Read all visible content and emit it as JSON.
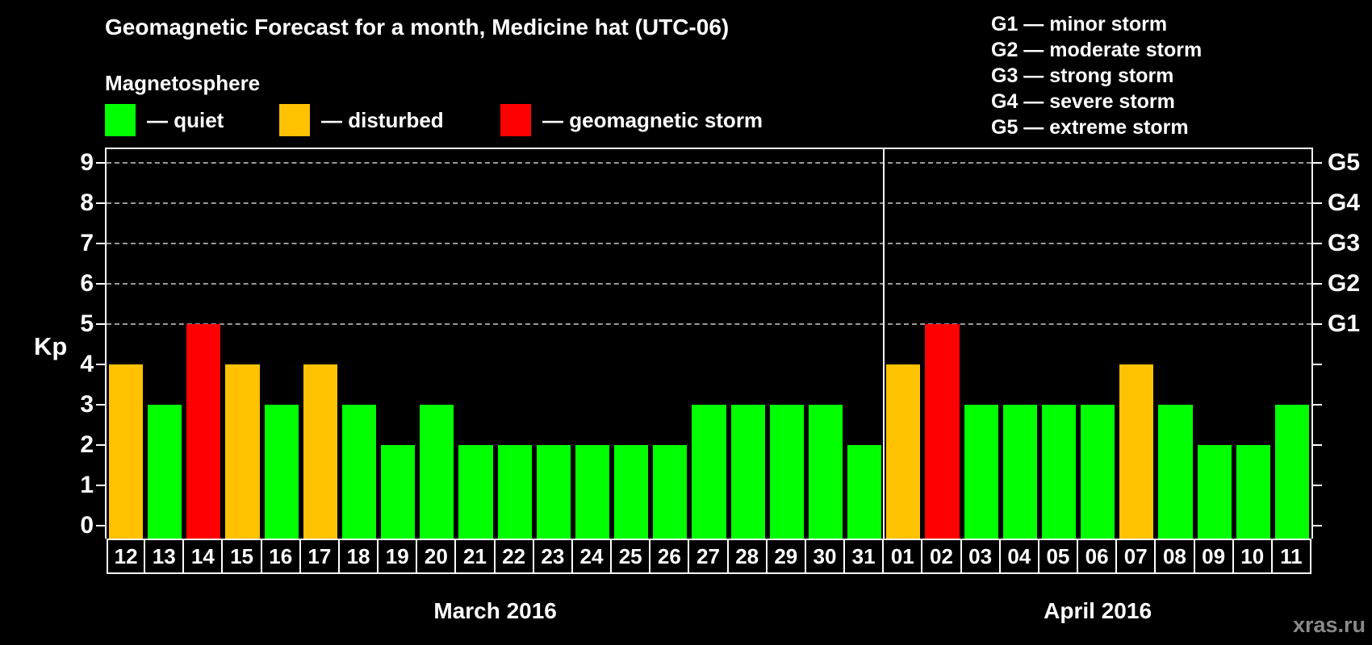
{
  "header": {
    "title": "Geomagnetic Forecast for a month, Medicine hat (UTC-06)"
  },
  "legend": {
    "label": "Magnetosphere",
    "items": [
      {
        "key": "quiet",
        "label": "— quiet"
      },
      {
        "key": "disturbed",
        "label": "— disturbed"
      },
      {
        "key": "storm",
        "label": "— geomagnetic storm"
      }
    ]
  },
  "colors": {
    "quiet": "#00FF00",
    "disturbed": "#FFC200",
    "storm": "#FF0000",
    "gridline": "#9A9A9A",
    "axis": "#FFFFFF",
    "background": "#000000",
    "watermark": "#8A8A8A"
  },
  "g_legend": [
    "G1 — minor storm",
    "G2 — moderate storm",
    "G3 — strong storm",
    "G4 — severe storm",
    "G5 — extreme storm"
  ],
  "watermark": "xras.ru",
  "chart_data": {
    "type": "bar",
    "title": "Geomagnetic Forecast for a month, Medicine hat (UTC-06)",
    "ylabel": "Kp",
    "ylim": [
      0,
      9.4
    ],
    "y_ticks": [
      0,
      1,
      2,
      3,
      4,
      5,
      6,
      7,
      8,
      9
    ],
    "gridlines_at": [
      5,
      6,
      7,
      8,
      9
    ],
    "grid": "dashed horizontal at Kp 5–9 only",
    "right_axis_labels": [
      {
        "value": 5,
        "label": "G1"
      },
      {
        "value": 6,
        "label": "G2"
      },
      {
        "value": 7,
        "label": "G3"
      },
      {
        "value": 8,
        "label": "G4"
      },
      {
        "value": 9,
        "label": "G5"
      }
    ],
    "months": [
      {
        "label": "March 2016",
        "days": [
          {
            "day": "12",
            "kp": 4,
            "status": "disturbed"
          },
          {
            "day": "13",
            "kp": 3,
            "status": "quiet"
          },
          {
            "day": "14",
            "kp": 5,
            "status": "storm"
          },
          {
            "day": "15",
            "kp": 4,
            "status": "disturbed"
          },
          {
            "day": "16",
            "kp": 3,
            "status": "quiet"
          },
          {
            "day": "17",
            "kp": 4,
            "status": "disturbed"
          },
          {
            "day": "18",
            "kp": 3,
            "status": "quiet"
          },
          {
            "day": "19",
            "kp": 2,
            "status": "quiet"
          },
          {
            "day": "20",
            "kp": 3,
            "status": "quiet"
          },
          {
            "day": "21",
            "kp": 2,
            "status": "quiet"
          },
          {
            "day": "22",
            "kp": 2,
            "status": "quiet"
          },
          {
            "day": "23",
            "kp": 2,
            "status": "quiet"
          },
          {
            "day": "24",
            "kp": 2,
            "status": "quiet"
          },
          {
            "day": "25",
            "kp": 2,
            "status": "quiet"
          },
          {
            "day": "26",
            "kp": 2,
            "status": "quiet"
          },
          {
            "day": "27",
            "kp": 3,
            "status": "quiet"
          },
          {
            "day": "28",
            "kp": 3,
            "status": "quiet"
          },
          {
            "day": "29",
            "kp": 3,
            "status": "quiet"
          },
          {
            "day": "30",
            "kp": 3,
            "status": "quiet"
          },
          {
            "day": "31",
            "kp": 2,
            "status": "quiet"
          }
        ]
      },
      {
        "label": "April 2016",
        "days": [
          {
            "day": "01",
            "kp": 4,
            "status": "disturbed"
          },
          {
            "day": "02",
            "kp": 5,
            "status": "storm"
          },
          {
            "day": "03",
            "kp": 3,
            "status": "quiet"
          },
          {
            "day": "04",
            "kp": 3,
            "status": "quiet"
          },
          {
            "day": "05",
            "kp": 3,
            "status": "quiet"
          },
          {
            "day": "06",
            "kp": 3,
            "status": "quiet"
          },
          {
            "day": "07",
            "kp": 4,
            "status": "disturbed"
          },
          {
            "day": "08",
            "kp": 3,
            "status": "quiet"
          },
          {
            "day": "09",
            "kp": 2,
            "status": "quiet"
          },
          {
            "day": "10",
            "kp": 2,
            "status": "quiet"
          },
          {
            "day": "11",
            "kp": 3,
            "status": "quiet"
          }
        ]
      }
    ]
  }
}
